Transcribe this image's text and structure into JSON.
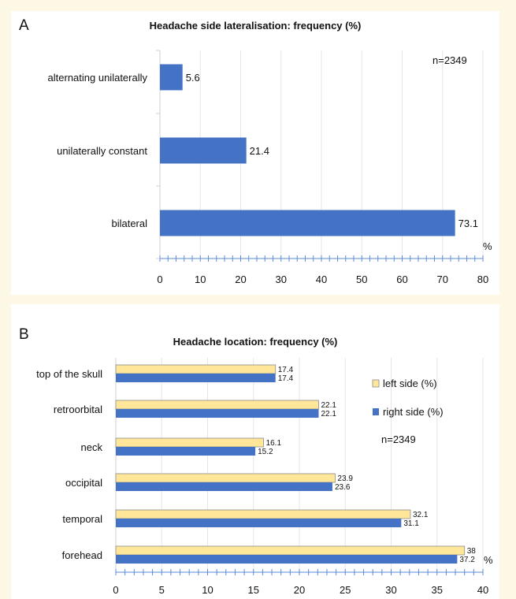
{
  "chart_data": [
    {
      "panel_label": "A",
      "type": "bar",
      "orientation": "horizontal",
      "title": "Headache side lateralisation: frequency (%)",
      "categories": [
        "alternating unilaterally",
        "unilaterally constant",
        "bilateral"
      ],
      "values": [
        5.6,
        21.4,
        73.1
      ],
      "value_labels": [
        "5.6",
        "21.4",
        "73.1"
      ],
      "xlabel": "%",
      "xlim": [
        0,
        80
      ],
      "x_ticks": [
        "0",
        "10",
        "20",
        "30",
        "40",
        "50",
        "60",
        "70",
        "80"
      ],
      "x_tick_values": [
        0,
        10,
        20,
        30,
        40,
        50,
        60,
        70,
        80
      ],
      "annotation": "n=2349",
      "grid": true,
      "bar_color": "#4472c4"
    },
    {
      "panel_label": "B",
      "type": "bar",
      "orientation": "horizontal",
      "title": "Headache location: frequency (%)",
      "categories": [
        "top of the skull",
        "retroorbital",
        "neck",
        "occipital",
        "temporal",
        "forehead"
      ],
      "series": [
        {
          "name": "left side (%)",
          "values": [
            17.4,
            22.1,
            16.1,
            23.9,
            32.1,
            38
          ],
          "value_labels": [
            "17.4",
            "22.1",
            "16.1",
            "23.9",
            "32.1",
            "38"
          ],
          "color": "#ffe699"
        },
        {
          "name": "right side (%)",
          "values": [
            17.4,
            22.1,
            15.2,
            23.6,
            31.1,
            37.2
          ],
          "value_labels": [
            "17.4",
            "22.1",
            "15.2",
            "23.6",
            "31.1",
            "37.2"
          ],
          "color": "#4472c4"
        }
      ],
      "xlabel": "%",
      "xlim": [
        0,
        40
      ],
      "x_ticks": [
        "0",
        "5",
        "10",
        "15",
        "20",
        "25",
        "30",
        "35",
        "40"
      ],
      "x_tick_values": [
        0,
        5,
        10,
        15,
        20,
        25,
        30,
        35,
        40
      ],
      "annotation": "n=2349",
      "legend_position": "right",
      "grid": true
    }
  ]
}
